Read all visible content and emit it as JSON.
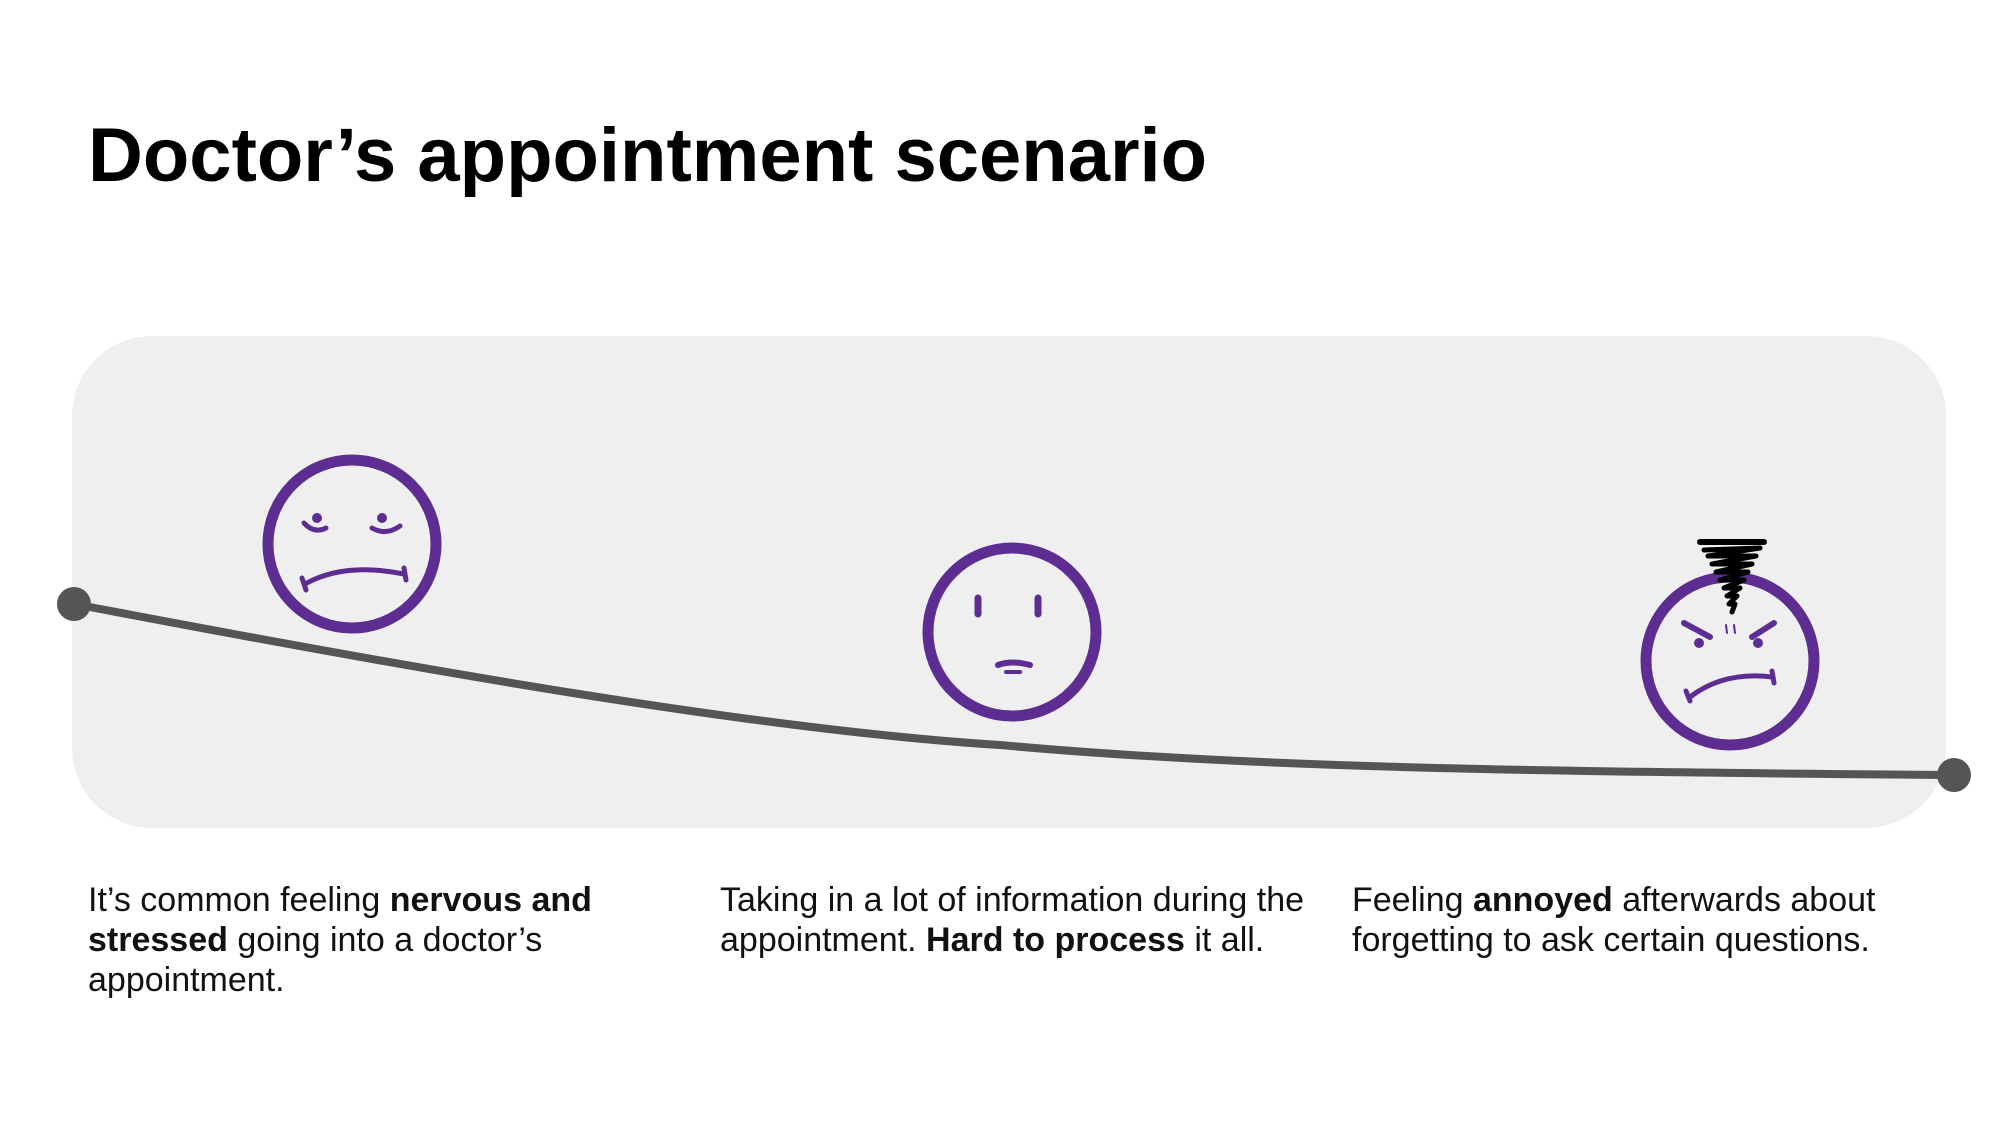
{
  "slide": {
    "title": "Doctor’s appointment scenario"
  },
  "colors": {
    "panel": "#efefef",
    "line": "#555555",
    "face": "#5e2d91",
    "steam": "#000000"
  },
  "stages": [
    {
      "face_icon": "nervous-face-icon",
      "caption": {
        "part1": "It’s common feeling ",
        "bold1": "nervous and stressed",
        "part2": " going into a doctor’s appointment."
      }
    },
    {
      "face_icon": "neutral-face-icon",
      "caption": {
        "part1": "Taking in a lot of information during the appointment. ",
        "bold1": "Hard to process",
        "part2": " it all."
      }
    },
    {
      "face_icon": "angry-face-icon",
      "caption": {
        "part1": "Feeling ",
        "bold1": "annoyed",
        "part2": " afterwards about forgetting to ask certain questions."
      }
    }
  ]
}
